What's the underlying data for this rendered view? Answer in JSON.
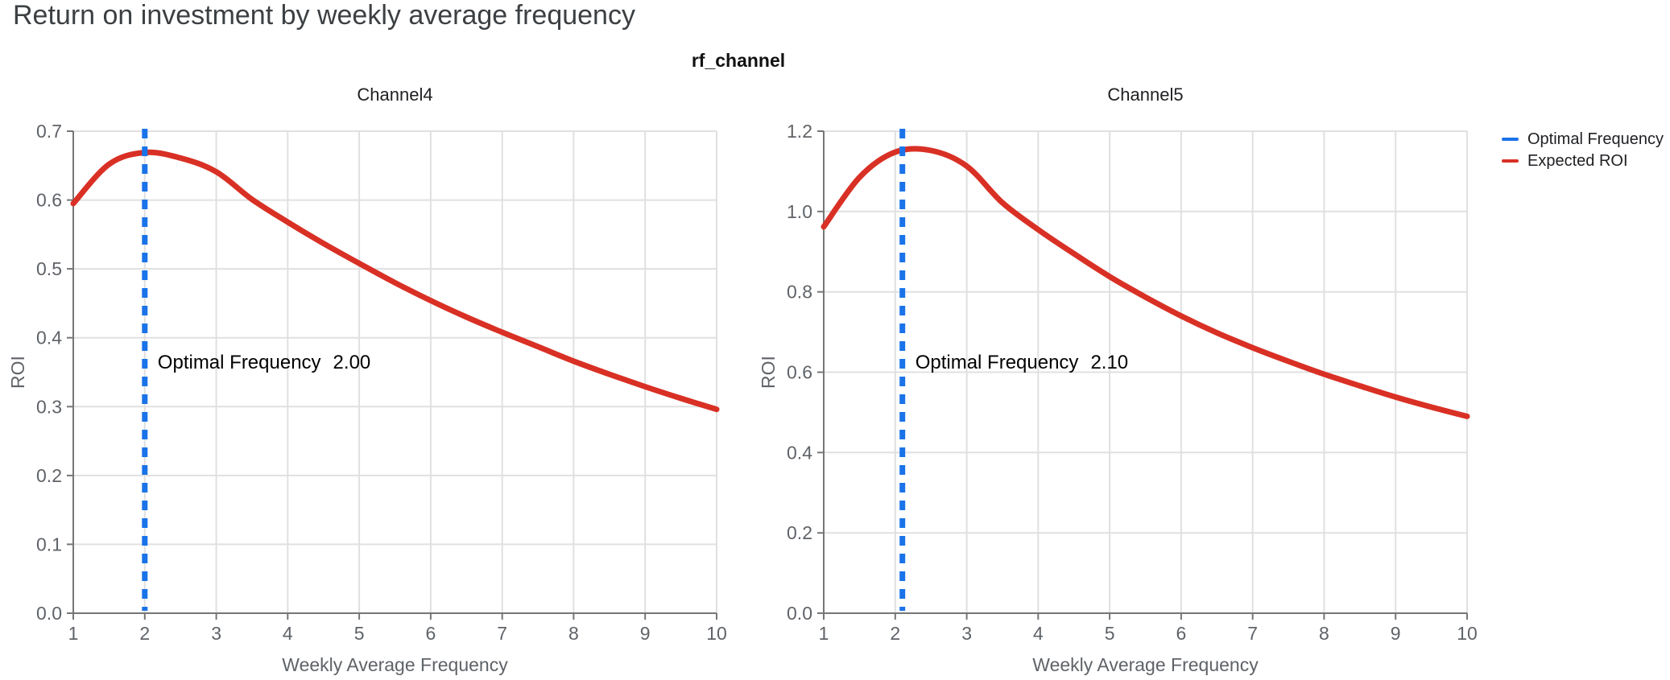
{
  "page": {
    "title": "Return on investment by weekly average frequency"
  },
  "figure": {
    "title": "rf_channel"
  },
  "legend": {
    "items": [
      {
        "label": "Optimal Frequency",
        "color": "#1a73e8"
      },
      {
        "label": "Expected ROI",
        "color": "#d93025"
      }
    ]
  },
  "colors": {
    "expected_roi": "#d93025",
    "optimal_frequency": "#1a73e8",
    "grid": "#e0e0e0",
    "axis": "#767676",
    "axis_text": "#5f6368",
    "chart_title_text": "#202124",
    "annotation_text": "#000000"
  },
  "chart_data": [
    {
      "type": "line",
      "title": "Channel4",
      "xlabel": "Weekly Average Frequency",
      "ylabel": "ROI",
      "xlim": [
        1,
        10
      ],
      "ylim": [
        0,
        0.7
      ],
      "xtick_values": [
        1,
        2,
        3,
        4,
        5,
        6,
        7,
        8,
        9,
        10
      ],
      "xtick_labels": [
        "1",
        "2",
        "3",
        "4",
        "5",
        "6",
        "7",
        "8",
        "9",
        "10"
      ],
      "ytick_values": [
        0,
        0.1,
        0.2,
        0.3,
        0.4,
        0.5,
        0.6,
        0.7
      ],
      "ytick_labels": [
        "0.0",
        "0.1",
        "0.2",
        "0.3",
        "0.4",
        "0.5",
        "0.6",
        "0.7"
      ],
      "grid": true,
      "optimal_frequency": 2.0,
      "annotation": {
        "label": "Optimal Frequency",
        "value": "2.00"
      },
      "series": [
        {
          "name": "Expected ROI",
          "x": [
            1,
            1.5,
            2,
            2.5,
            3,
            3.5,
            4,
            4.5,
            5,
            5.5,
            6,
            6.5,
            7,
            7.5,
            8,
            8.5,
            9,
            9.5,
            10
          ],
          "y": [
            0.595,
            0.652,
            0.669,
            0.661,
            0.641,
            0.601,
            0.568,
            0.537,
            0.508,
            0.48,
            0.454,
            0.43,
            0.408,
            0.387,
            0.366,
            0.347,
            0.329,
            0.312,
            0.296
          ]
        }
      ]
    },
    {
      "type": "line",
      "title": "Channel5",
      "xlabel": "Weekly Average Frequency",
      "ylabel": "ROI",
      "xlim": [
        1,
        10
      ],
      "ylim": [
        0,
        1.2
      ],
      "xtick_values": [
        1,
        2,
        3,
        4,
        5,
        6,
        7,
        8,
        9,
        10
      ],
      "xtick_labels": [
        "1",
        "2",
        "3",
        "4",
        "5",
        "6",
        "7",
        "8",
        "9",
        "10"
      ],
      "ytick_values": [
        0,
        0.2,
        0.4,
        0.6,
        0.8,
        1.0,
        1.2
      ],
      "ytick_labels": [
        "0.0",
        "0.2",
        "0.4",
        "0.6",
        "0.8",
        "1.0",
        "1.2"
      ],
      "grid": true,
      "optimal_frequency": 2.1,
      "annotation": {
        "label": "Optimal Frequency",
        "value": "2.10"
      },
      "series": [
        {
          "name": "Expected ROI",
          "x": [
            1,
            1.5,
            2,
            2.5,
            3,
            3.5,
            4,
            4.5,
            5,
            5.5,
            6,
            6.5,
            7,
            7.5,
            8,
            8.5,
            9,
            9.5,
            10
          ],
          "y": [
            0.962,
            1.085,
            1.148,
            1.152,
            1.113,
            1.022,
            0.955,
            0.895,
            0.838,
            0.787,
            0.74,
            0.698,
            0.661,
            0.627,
            0.595,
            0.566,
            0.538,
            0.513,
            0.49
          ]
        }
      ]
    }
  ]
}
